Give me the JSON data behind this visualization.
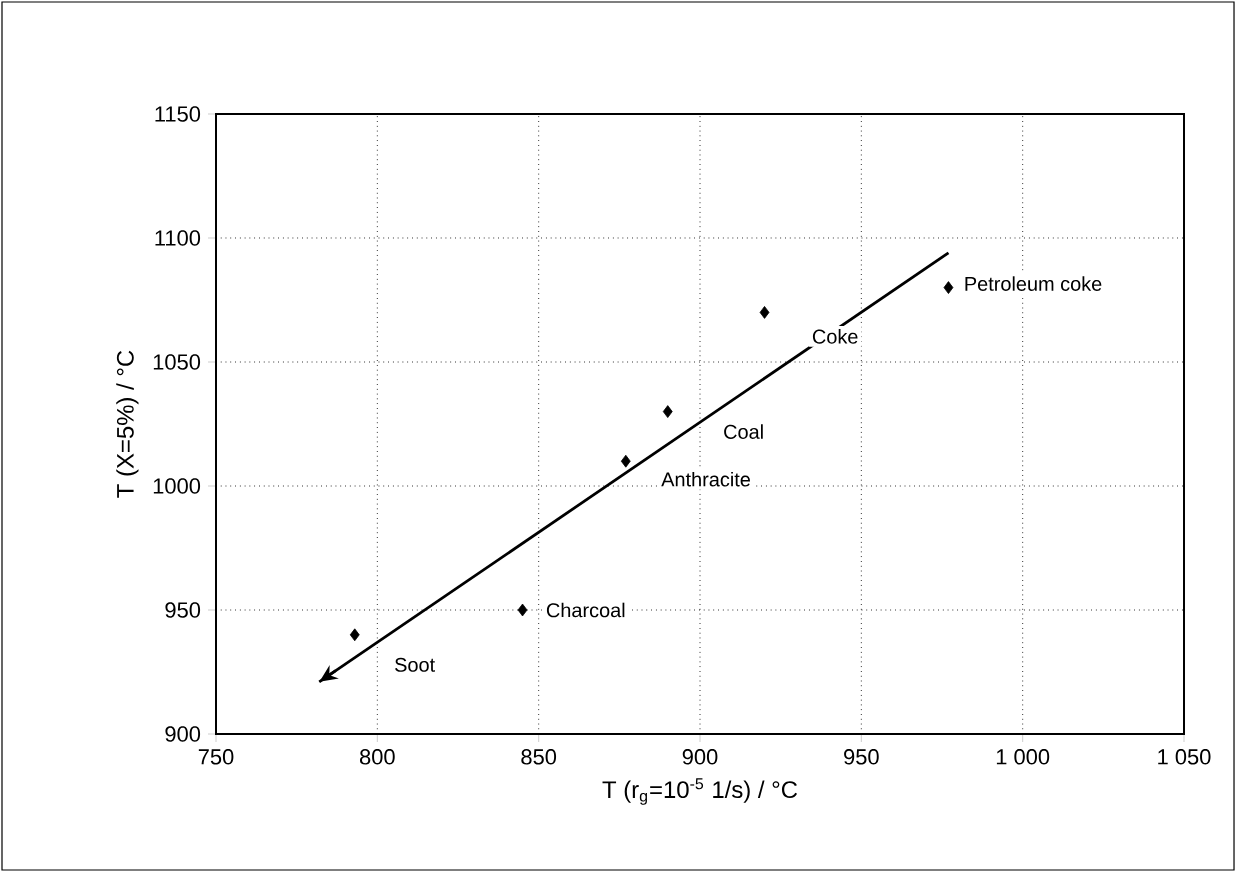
{
  "chart_data": {
    "type": "scatter",
    "xlabel": "T (r$_{g}$=10$^{-5}$ 1/s) / °C",
    "ylabel": "T (X=5%) / °C",
    "series": [
      {
        "color": "#000000",
        "marker": "diamond",
        "x": [
          793,
          845,
          877,
          890,
          920,
          977
        ],
        "values": [
          940,
          950,
          1010,
          1030,
          1070,
          1080
        ]
      },
      {
        "type": "line",
        "color": "#000000",
        "marker": "none",
        "line_style": "solid",
        "x": [
          977,
          782
        ],
        "values": [
          1094,
          921
        ]
      }
    ],
    "annotations": [
      {
        "text": "Soot",
        "x": 793,
        "y": 940
      },
      {
        "text": "Charcoal",
        "x": 845,
        "y": 950
      },
      {
        "text": "Anthracite",
        "x": 877,
        "y": 1010
      },
      {
        "text": "Coal",
        "x": 890,
        "y": 1030
      },
      {
        "text": "Coke",
        "x": 920,
        "y": 1070
      },
      {
        "text": "Petroleum coke",
        "x": 977,
        "y": 1080
      }
    ],
    "xlim": [
      750,
      1050
    ],
    "ylim": [
      900,
      1150
    ],
    "xticks": [
      750,
      800,
      850,
      900,
      950,
      {
        "value": 1000,
        "label": "1 000"
      },
      {
        "value": 1050,
        "label": "1 050"
      }
    ],
    "yticks": [
      900,
      950,
      1000,
      1050,
      1100,
      1150
    ],
    "grid": true
  }
}
